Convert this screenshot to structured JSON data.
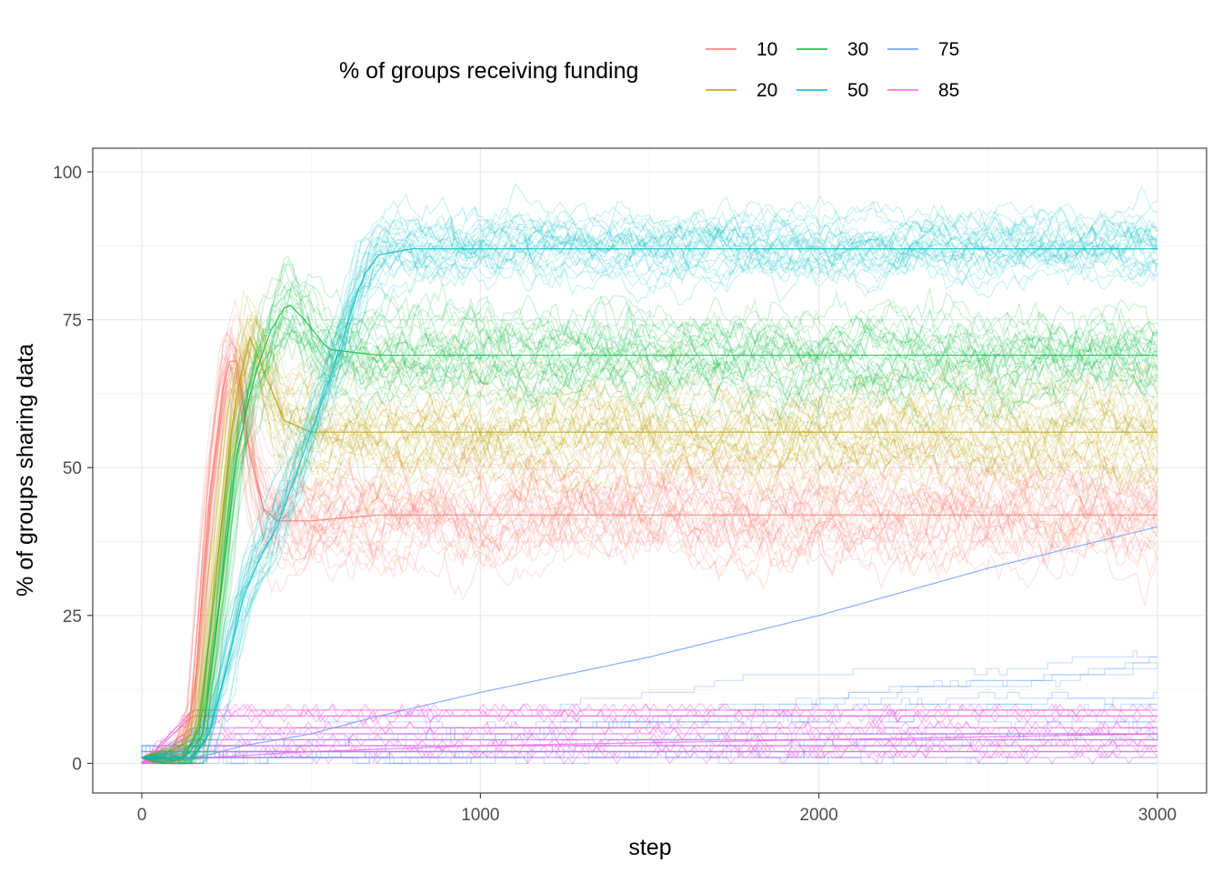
{
  "chart_data": {
    "type": "line",
    "xlabel": "step",
    "ylabel": "% of groups sharing data",
    "xlim": [
      -145,
      3145
    ],
    "ylim": [
      -5,
      104
    ],
    "x_ticks": [
      0,
      1000,
      2000,
      3000
    ],
    "y_ticks": [
      0,
      25,
      50,
      75,
      100
    ],
    "x_tick_labels": [
      "0",
      "1000",
      "2000",
      "3000"
    ],
    "y_tick_labels": [
      "0",
      "25",
      "50",
      "75",
      "100"
    ],
    "grid": true,
    "legend": {
      "title": "% of groups receiving funding",
      "position": "top"
    },
    "series": [
      {
        "name": "10",
        "color": "#F8766D",
        "x": [
          0,
          100,
          150,
          200,
          250,
          280,
          320,
          360,
          400,
          500,
          700,
          1000,
          1500,
          2000,
          2500,
          3000
        ],
        "values": [
          1,
          1,
          8,
          45,
          68,
          68,
          52,
          43,
          41,
          41,
          42,
          42,
          42,
          42,
          42,
          42
        ]
      },
      {
        "name": "20",
        "color": "#B79F00",
        "x": [
          0,
          120,
          170,
          220,
          270,
          320,
          370,
          420,
          500,
          700,
          1000,
          1500,
          2000,
          2500,
          3000
        ],
        "values": [
          1,
          1,
          6,
          32,
          60,
          72,
          65,
          58,
          56,
          56,
          56,
          56,
          56,
          56,
          56
        ]
      },
      {
        "name": "30",
        "color": "#00BA38",
        "x": [
          0,
          130,
          180,
          230,
          280,
          330,
          380,
          430,
          480,
          550,
          700,
          1000,
          1500,
          2000,
          2500,
          3000
        ],
        "values": [
          1,
          1,
          5,
          27,
          52,
          65,
          73,
          78,
          75,
          70,
          69,
          69,
          69,
          69,
          69,
          69
        ]
      },
      {
        "name": "50",
        "color": "#00BFC4",
        "x": [
          0,
          150,
          200,
          250,
          300,
          350,
          400,
          450,
          500,
          550,
          600,
          650,
          700,
          800,
          1000,
          1500,
          2000,
          2500,
          3000
        ],
        "values": [
          1,
          1,
          5,
          16,
          28,
          35,
          40,
          48,
          56,
          64,
          73,
          82,
          86,
          87,
          87,
          87,
          87,
          87,
          87
        ]
      },
      {
        "name": "75",
        "color": "#619CFF",
        "x": [
          0,
          100,
          200,
          300,
          400,
          500,
          700,
          1000,
          1500,
          2000,
          2500,
          3000
        ],
        "values": [
          0,
          0.5,
          1.5,
          3,
          4,
          5,
          8,
          12,
          18,
          25,
          33,
          40
        ]
      },
      {
        "name": "85",
        "color": "#F564E3",
        "x": [
          0,
          200,
          500,
          1000,
          1500,
          2000,
          2500,
          3000
        ],
        "values": [
          0,
          1,
          2,
          3,
          3.5,
          4,
          4.5,
          5
        ]
      }
    ]
  }
}
